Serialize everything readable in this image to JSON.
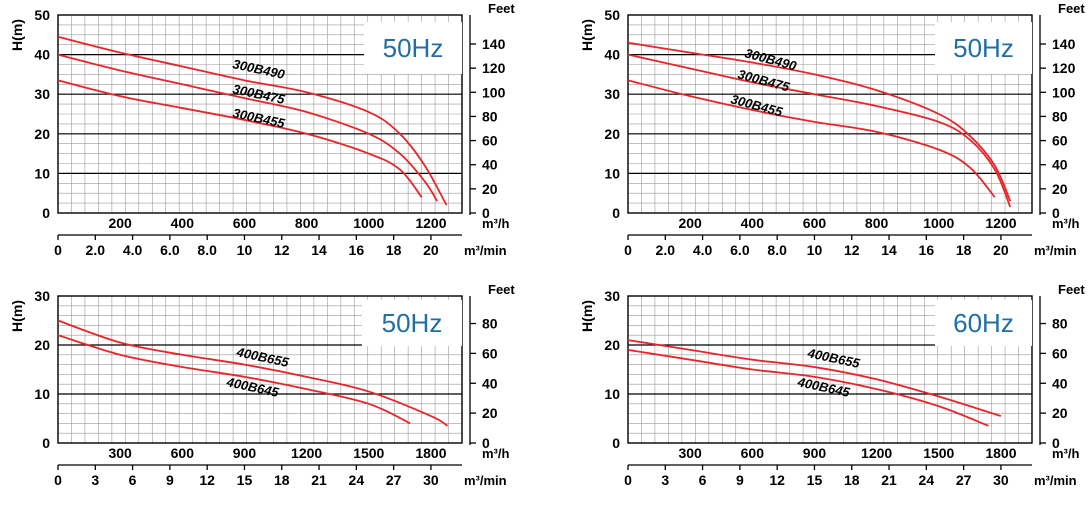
{
  "chart_data": [
    {
      "type": "line",
      "hz": "50Hz",
      "ylabel": "H(m)",
      "y2label": "Feet",
      "x_unit": "m³/h",
      "x2_unit": "m³/min",
      "ylim": [
        0,
        50
      ],
      "y_ticks": [
        0,
        10,
        20,
        30,
        40,
        50
      ],
      "feet_ticks": [
        "0",
        "20",
        "40",
        "60",
        "80",
        "100",
        "120",
        "140"
      ],
      "xlim": [
        0,
        1300
      ],
      "x_ticks": [
        "200",
        "400",
        "600",
        "800",
        "1000",
        "1200"
      ],
      "x2_ticks": [
        "0",
        "2.0",
        "4.0",
        "6.0",
        "8.0",
        "10",
        "12",
        "14",
        "16",
        "18",
        "20"
      ],
      "series": [
        {
          "name": "300B490",
          "x": [
            0,
            200,
            400,
            600,
            800,
            1000,
            1100,
            1180,
            1250
          ],
          "y": [
            44.5,
            40.5,
            37,
            33.5,
            30.5,
            25.5,
            20,
            12,
            2
          ]
        },
        {
          "name": "300B475",
          "x": [
            0,
            200,
            400,
            600,
            800,
            1000,
            1100,
            1180,
            1220
          ],
          "y": [
            40,
            36,
            32.5,
            29,
            25.5,
            20,
            15,
            8,
            3
          ]
        },
        {
          "name": "300B455",
          "x": [
            0,
            200,
            400,
            600,
            800,
            1000,
            1100,
            1170
          ],
          "y": [
            33.5,
            29.5,
            26.5,
            23.5,
            20,
            15,
            11,
            4
          ]
        }
      ]
    },
    {
      "type": "line",
      "hz": "50Hz",
      "ylabel": "H(m)",
      "y2label": "Feet",
      "x_unit": "m³/h",
      "x2_unit": "m³/min",
      "ylim": [
        0,
        50
      ],
      "y_ticks": [
        0,
        10,
        20,
        30,
        40,
        50
      ],
      "feet_ticks": [
        "0",
        "20",
        "40",
        "60",
        "80",
        "100",
        "120",
        "140"
      ],
      "xlim": [
        0,
        1300
      ],
      "x_ticks": [
        "200",
        "400",
        "600",
        "800",
        "1000",
        "1200"
      ],
      "x2_ticks": [
        "0",
        "2.0",
        "4.0",
        "6.0",
        "8.0",
        "10",
        "12",
        "14",
        "16",
        "18",
        "20"
      ],
      "series": [
        {
          "name": "300B490",
          "x": [
            0,
            200,
            400,
            600,
            800,
            1000,
            1100,
            1180,
            1230
          ],
          "y": [
            43,
            40.5,
            38,
            35,
            31,
            25,
            19.5,
            12,
            3
          ]
        },
        {
          "name": "300B475",
          "x": [
            0,
            200,
            400,
            600,
            800,
            1000,
            1100,
            1180,
            1230
          ],
          "y": [
            40,
            36.5,
            33,
            30,
            27,
            23,
            18.5,
            11,
            1.5
          ]
        },
        {
          "name": "300B455",
          "x": [
            0,
            200,
            400,
            600,
            800,
            1000,
            1100,
            1180
          ],
          "y": [
            33.5,
            29.5,
            26,
            23,
            20.5,
            16,
            11.5,
            4
          ]
        }
      ]
    },
    {
      "type": "line",
      "hz": "50Hz",
      "ylabel": "H(m)",
      "y2label": "Feet",
      "x_unit": "m³/h",
      "x2_unit": "m³/min",
      "ylim": [
        0,
        30
      ],
      "y_ticks": [
        0,
        10,
        20,
        30
      ],
      "feet_ticks": [
        "0",
        "20",
        "40",
        "60",
        "80"
      ],
      "xlim": [
        0,
        1950
      ],
      "x_ticks": [
        "300",
        "600",
        "900",
        "1200",
        "1500",
        "1800"
      ],
      "x2_ticks": [
        "0",
        "3",
        "6",
        "9",
        "12",
        "15",
        "18",
        "21",
        "24",
        "27",
        "30"
      ],
      "series": [
        {
          "name": "400B655",
          "x": [
            0,
            300,
            600,
            900,
            1200,
            1500,
            1800,
            1880
          ],
          "y": [
            25,
            20.5,
            18,
            16,
            13.5,
            10.5,
            5.5,
            3.5
          ]
        },
        {
          "name": "400B645",
          "x": [
            0,
            300,
            600,
            900,
            1200,
            1500,
            1700
          ],
          "y": [
            22,
            18,
            15.5,
            13.5,
            11,
            8,
            4
          ]
        }
      ]
    },
    {
      "type": "line",
      "hz": "60Hz",
      "ylabel": "H(m)",
      "y2label": "Feet",
      "x_unit": "m³/h",
      "x2_unit": "m³/min",
      "ylim": [
        0,
        30
      ],
      "y_ticks": [
        0,
        10,
        20,
        30
      ],
      "feet_ticks": [
        "0",
        "20",
        "40",
        "60",
        "80"
      ],
      "xlim": [
        0,
        1950
      ],
      "x_ticks": [
        "300",
        "600",
        "900",
        "1200",
        "1500",
        "1800"
      ],
      "x2_ticks": [
        "0",
        "3",
        "6",
        "9",
        "12",
        "15",
        "18",
        "21",
        "24",
        "27",
        "30"
      ],
      "series": [
        {
          "name": "400B655",
          "x": [
            0,
            300,
            600,
            900,
            1200,
            1500,
            1800
          ],
          "y": [
            21,
            19,
            17,
            15.5,
            13,
            9.5,
            5.5
          ]
        },
        {
          "name": "400B645",
          "x": [
            0,
            300,
            600,
            900,
            1200,
            1500,
            1740
          ],
          "y": [
            19,
            17,
            15,
            13.5,
            11,
            7.5,
            3.5
          ]
        }
      ]
    }
  ],
  "colors": {
    "curve": "#e8262a",
    "axis": "#000000",
    "grid_minor": "#9a9a9a",
    "grid_major": "#000000",
    "hz_text": "#1f6fa5"
  }
}
